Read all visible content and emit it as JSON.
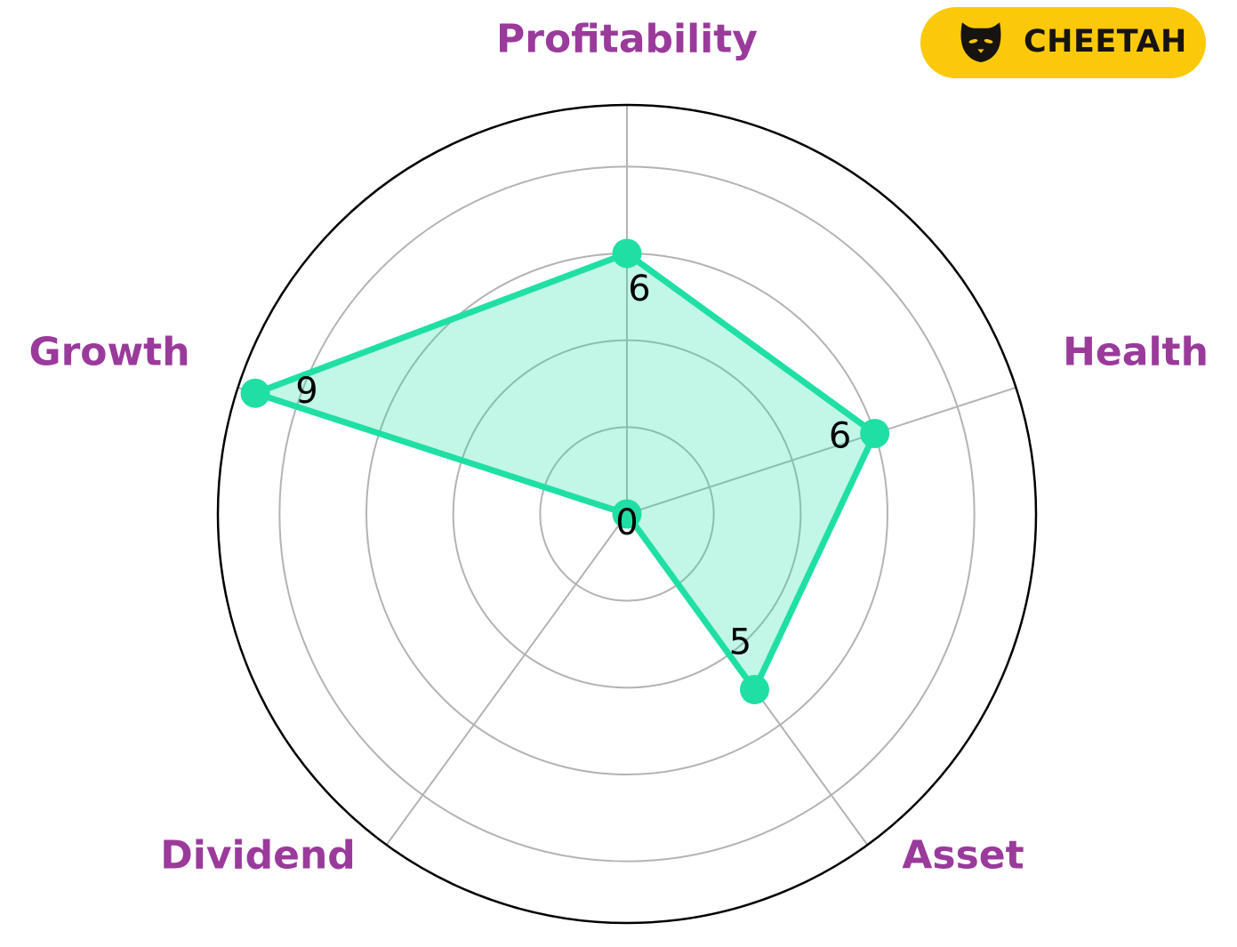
{
  "badge": {
    "label": "CHEETAH",
    "icon": "cat-icon",
    "background_color": "#FBC90A",
    "text_color": "#171311"
  },
  "chart_data": {
    "type": "radar",
    "title": "",
    "categories": [
      "Profitability",
      "Health",
      "Asset",
      "Dividend",
      "Growth"
    ],
    "values": [
      6,
      6,
      5,
      0,
      9
    ],
    "rticks": [
      2,
      4,
      6,
      8
    ],
    "axis_max": 9.42,
    "grid": true,
    "legend_position": "none",
    "colors": {
      "series_line": "#1FDFA5",
      "series_fill": "rgba(31, 223, 165, 0.27)",
      "marker": "#1FDFA5",
      "grid": "#B3B3B3",
      "outer_ring": "#000000",
      "axis_label": "#9A3A9B",
      "value_label": "#000000"
    }
  }
}
